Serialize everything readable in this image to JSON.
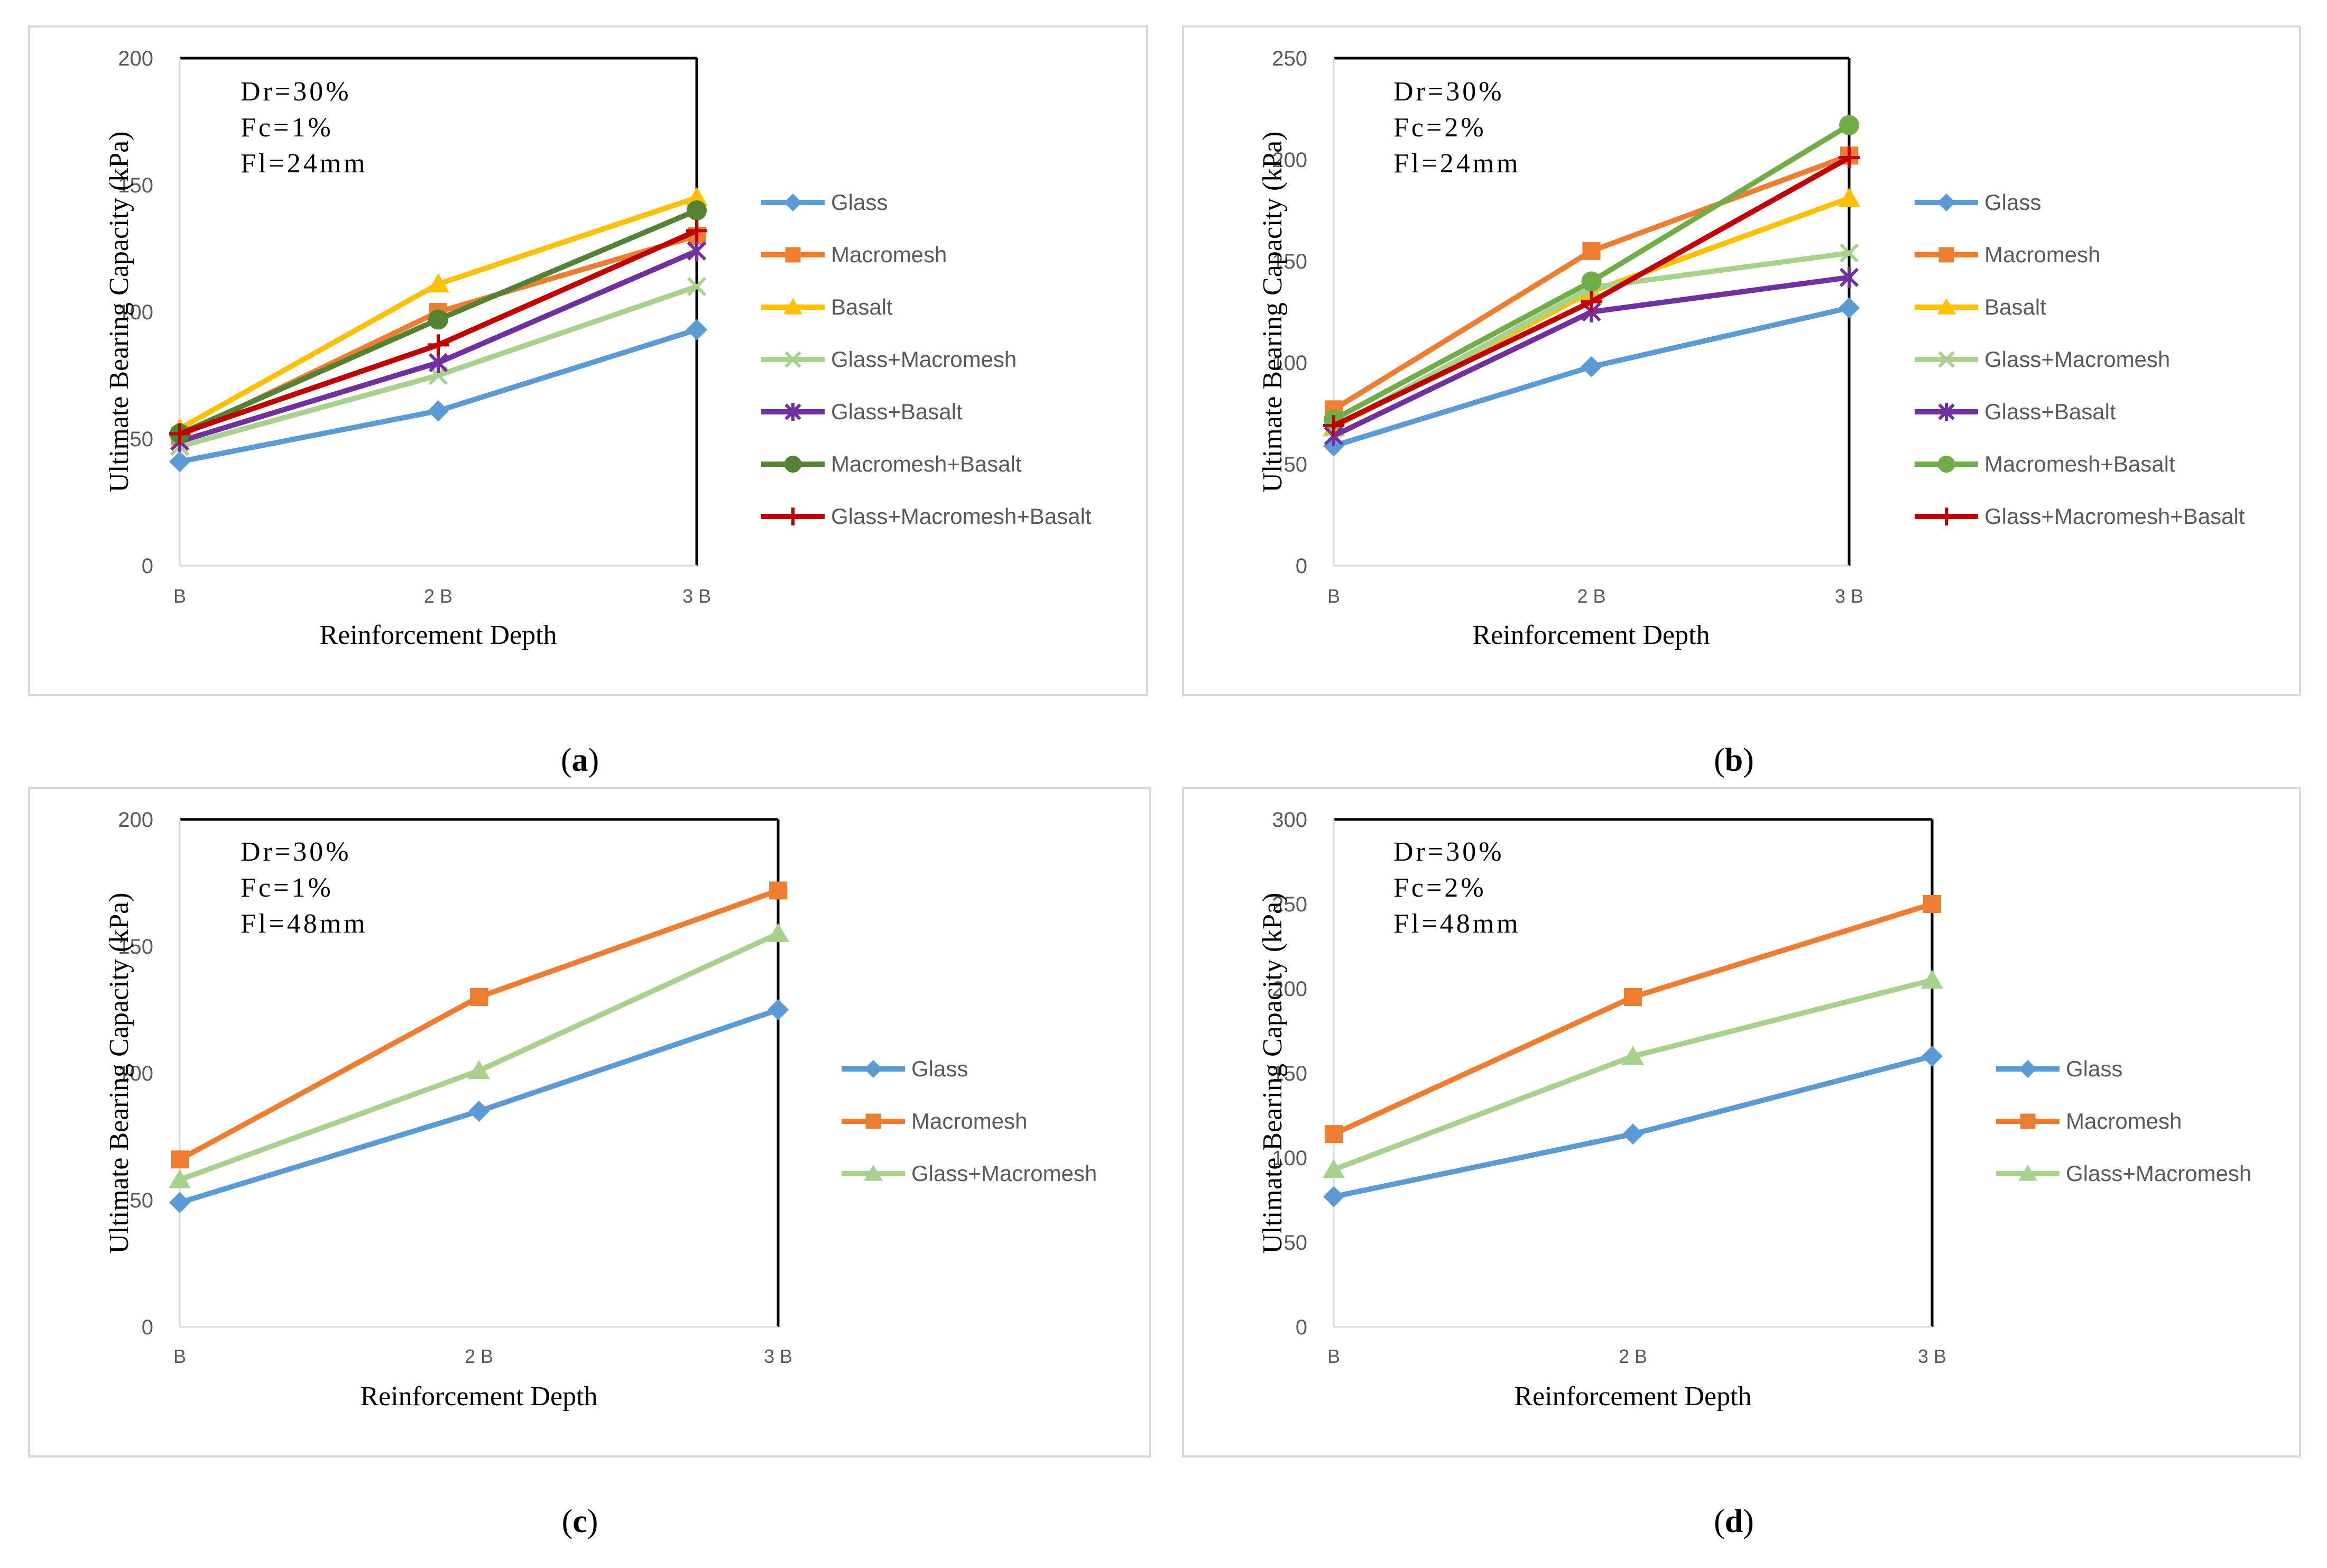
{
  "figure": {
    "subfigure_labels": [
      "a",
      "b",
      "c",
      "d"
    ]
  },
  "chart_data": [
    {
      "type": "line",
      "panel": "a",
      "ylabel": "Ultimate Bearing Capacity (kPa)",
      "xlabel": "Reinforcement Depth",
      "categories": [
        "B",
        "2 B",
        "3 B"
      ],
      "ylim": [
        0,
        200
      ],
      "yticks": [
        0,
        50,
        100,
        150,
        200
      ],
      "ytick_labels": [
        "0",
        "50",
        "100",
        "150",
        "200"
      ],
      "annotation": [
        "Dr=30%",
        "Fc=1%",
        "Fl=24mm"
      ],
      "legend_position": "right",
      "grid": false,
      "series": [
        {
          "name": "Glass",
          "values": [
            41,
            61,
            93
          ],
          "color": "#5b9bd5",
          "marker": "diamond"
        },
        {
          "name": "Macromesh",
          "values": [
            51,
            100,
            130
          ],
          "color": "#ed7d31",
          "marker": "square"
        },
        {
          "name": "Basalt",
          "values": [
            54,
            111,
            145
          ],
          "color": "#ffc000",
          "marker": "triangle"
        },
        {
          "name": "Glass+Macromesh",
          "values": [
            47,
            75,
            110
          ],
          "color": "#a9d18e",
          "marker": "x"
        },
        {
          "name": "Glass+Basalt",
          "values": [
            49,
            80,
            124
          ],
          "color": "#7030a0",
          "marker": "star"
        },
        {
          "name": "Macromesh+Basalt",
          "values": [
            52,
            97,
            140
          ],
          "color": "#548235",
          "marker": "circle"
        },
        {
          "name": "Glass+Macromesh+Basalt",
          "values": [
            52,
            87,
            132
          ],
          "color": "#c00000",
          "marker": "plus"
        }
      ]
    },
    {
      "type": "line",
      "panel": "b",
      "ylabel": "Ultimate Bearing Capacity (kPa)",
      "xlabel": "Reinforcement Depth",
      "categories": [
        "B",
        "2 B",
        "3 B"
      ],
      "ylim": [
        0,
        250
      ],
      "yticks": [
        0,
        50,
        100,
        150,
        200,
        250
      ],
      "ytick_labels": [
        "0",
        "50",
        "100",
        "150",
        "200",
        "250"
      ],
      "annotation": [
        "Dr=30%",
        "Fc=2%",
        "Fl=24mm"
      ],
      "legend_position": "right",
      "grid": false,
      "series": [
        {
          "name": "Glass",
          "values": [
            59,
            98,
            127
          ],
          "color": "#5b9bd5",
          "marker": "diamond"
        },
        {
          "name": "Macromesh",
          "values": [
            77,
            155,
            202
          ],
          "color": "#ed7d31",
          "marker": "square"
        },
        {
          "name": "Basalt",
          "values": [
            68,
            135,
            181
          ],
          "color": "#ffc000",
          "marker": "triangle"
        },
        {
          "name": "Glass+Macromesh",
          "values": [
            68,
            137,
            154
          ],
          "color": "#a9d18e",
          "marker": "x"
        },
        {
          "name": "Glass+Basalt",
          "values": [
            64,
            125,
            142
          ],
          "color": "#7030a0",
          "marker": "star"
        },
        {
          "name": "Macromesh+Basalt",
          "values": [
            72,
            140,
            217
          ],
          "color": "#70ad47",
          "marker": "circle"
        },
        {
          "name": "Glass+Macromesh+Basalt",
          "values": [
            69,
            130,
            201
          ],
          "color": "#c00000",
          "marker": "plus"
        }
      ]
    },
    {
      "type": "line",
      "panel": "c",
      "ylabel": "Ultimate Bearing Capacity (kPa)",
      "xlabel": "Reinforcement Depth",
      "categories": [
        "B",
        "2 B",
        "3 B"
      ],
      "ylim": [
        0,
        200
      ],
      "yticks": [
        0,
        50,
        100,
        150,
        200
      ],
      "ytick_labels": [
        "0",
        "50",
        "100",
        "150",
        "200"
      ],
      "annotation": [
        "Dr=30%",
        "Fc=1%",
        "Fl=48mm"
      ],
      "legend_position": "right",
      "grid": false,
      "series": [
        {
          "name": "Glass",
          "values": [
            49,
            85,
            125
          ],
          "color": "#5b9bd5",
          "marker": "diamond"
        },
        {
          "name": "Macromesh",
          "values": [
            66,
            130,
            172
          ],
          "color": "#ed7d31",
          "marker": "square"
        },
        {
          "name": "Glass+Macromesh",
          "values": [
            58,
            101,
            155
          ],
          "color": "#a9d18e",
          "marker": "triangle"
        }
      ]
    },
    {
      "type": "line",
      "panel": "d",
      "ylabel": "Ultimate Bearing Capacity (kPa)",
      "xlabel": "Reinforcement Depth",
      "categories": [
        "B",
        "2 B",
        "3 B"
      ],
      "ylim": [
        0,
        300
      ],
      "yticks": [
        0,
        50,
        100,
        150,
        200,
        250,
        300
      ],
      "ytick_labels": [
        "0",
        "50",
        "100",
        "150",
        "200",
        "250",
        "300"
      ],
      "annotation": [
        "Dr=30%",
        "Fc=2%",
        "Fl=48mm"
      ],
      "legend_position": "right",
      "grid": false,
      "series": [
        {
          "name": "Glass",
          "values": [
            77,
            114,
            160
          ],
          "color": "#5b9bd5",
          "marker": "diamond"
        },
        {
          "name": "Macromesh",
          "values": [
            114,
            195,
            250
          ],
          "color": "#ed7d31",
          "marker": "square"
        },
        {
          "name": "Glass+Macromesh",
          "values": [
            93,
            160,
            205
          ],
          "color": "#a9d18e",
          "marker": "triangle"
        }
      ]
    }
  ]
}
